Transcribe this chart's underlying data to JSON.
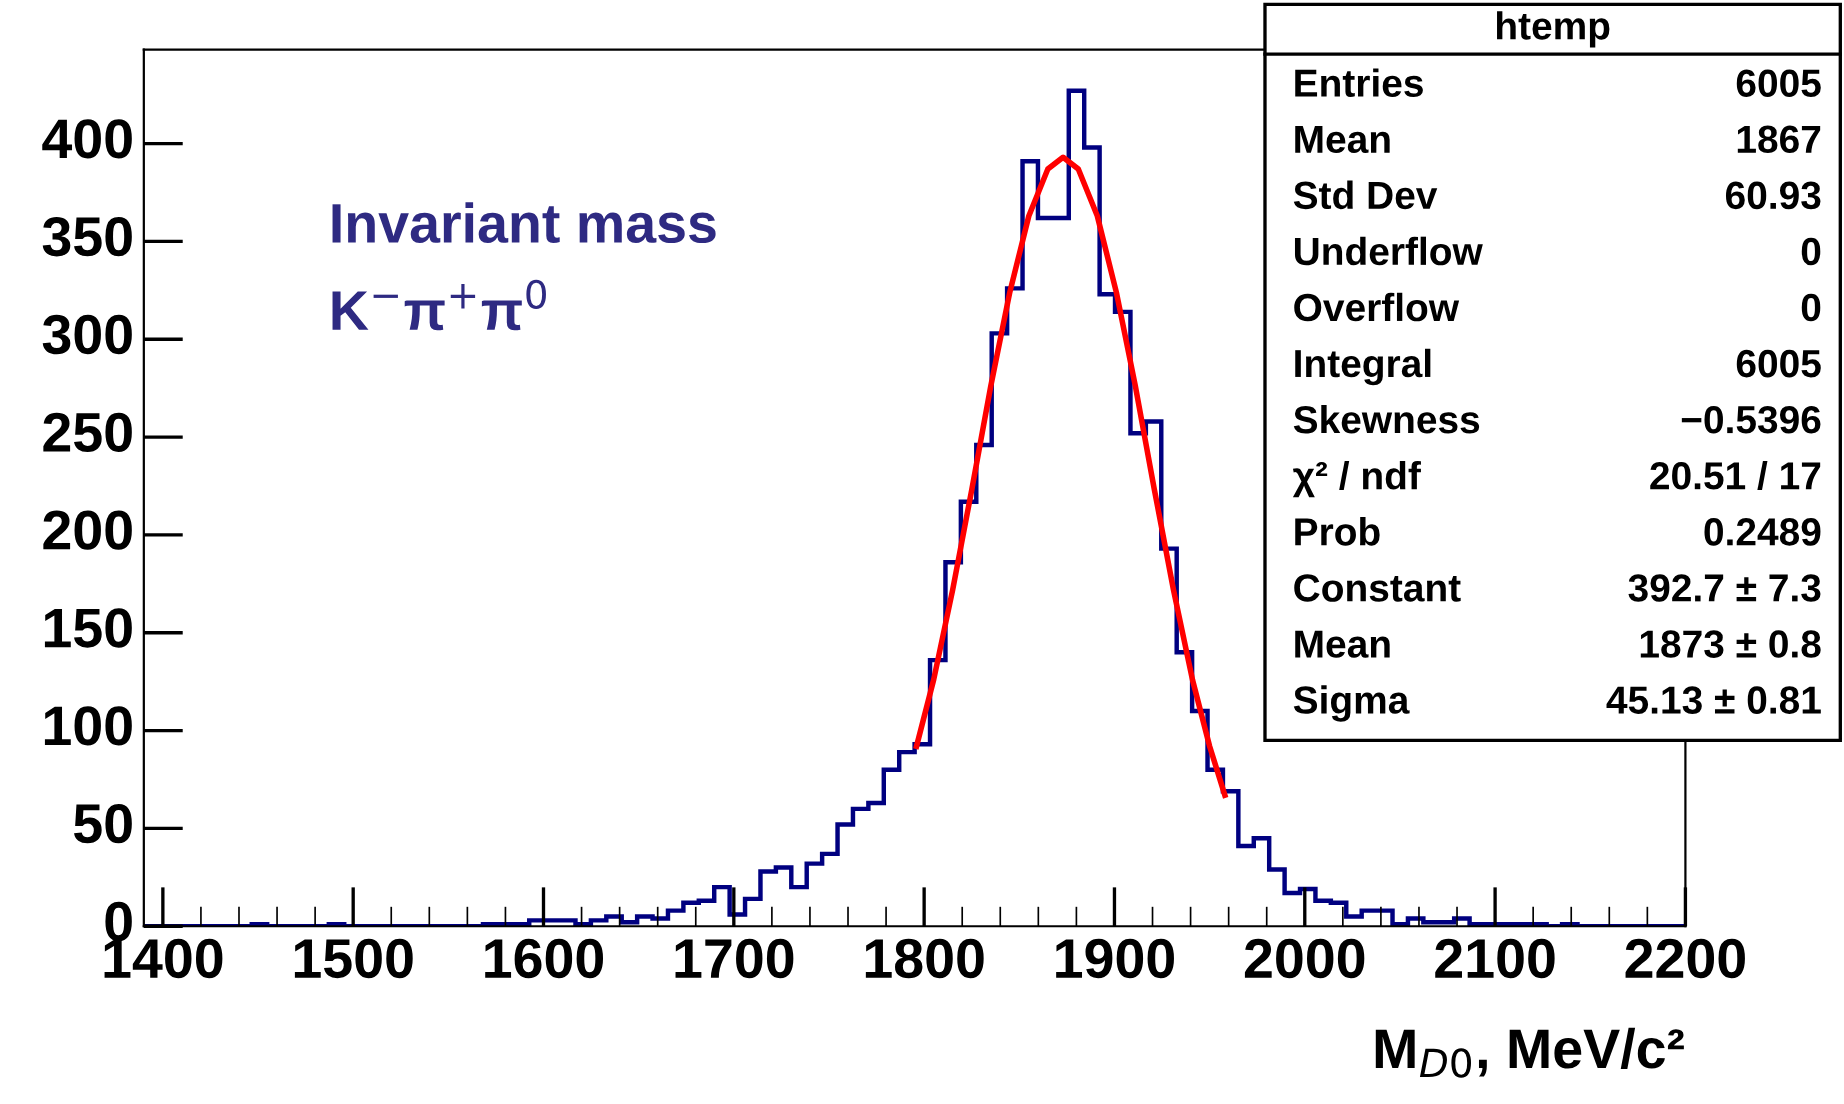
{
  "chart_data": {
    "type": "histogram",
    "title": "htemp",
    "xlabel": "M$_{D0}$, MeV/c²",
    "xlim": [
      1390,
      2200
    ],
    "xticks": [
      1400,
      1500,
      1600,
      1700,
      1800,
      1900,
      2000,
      2100,
      2200
    ],
    "ylim": [
      0,
      448
    ],
    "yticks": [
      0,
      50,
      100,
      150,
      200,
      250,
      300,
      350,
      400
    ],
    "series": [
      {
        "color": "#000080",
        "bins": [
          1390,
          1398.1,
          1406.2,
          1414.3,
          1422.4,
          1430.5,
          1438.6,
          1446.7,
          1454.8,
          1462.9,
          1471,
          1479.1,
          1487.2,
          1495.3,
          1503.4,
          1511.5,
          1519.6,
          1527.7,
          1535.8,
          1543.9,
          1552,
          1560.1,
          1568.2,
          1576.3,
          1584.4,
          1592.5,
          1600.6,
          1608.7,
          1616.8,
          1624.9,
          1633,
          1641.1,
          1649.2,
          1657.3,
          1665.4,
          1673.5,
          1681.6,
          1689.7,
          1697.8,
          1705.9,
          1714,
          1722.1,
          1730.2,
          1738.3,
          1746.4,
          1754.5,
          1762.6,
          1770.7,
          1778.8,
          1786.9,
          1795,
          1803.1,
          1811.2,
          1819.3,
          1827.4,
          1835.5,
          1843.6,
          1851.7,
          1859.8,
          1867.9,
          1876,
          1884.1,
          1892.2,
          1900.3,
          1908.4,
          1916.5,
          1924.6,
          1932.7,
          1940.8,
          1948.9,
          1957,
          1965.1,
          1973.2,
          1981.3,
          1989.4,
          1997.5,
          2005.6,
          2013.7,
          2021.8,
          2029.9,
          2038,
          2046.1,
          2054.2,
          2062.3,
          2070.4,
          2078.5,
          2086.6,
          2094.7,
          2102.8,
          2110.9,
          2119,
          2127.1,
          2135.2,
          2143.3,
          2151.4,
          2159.5,
          2167.6,
          2175.7,
          2183.8,
          2191.9,
          2200
        ],
        "values": [
          0,
          0,
          0,
          0,
          0,
          0,
          0,
          1,
          0,
          0,
          0,
          0,
          1,
          0,
          0,
          0,
          0,
          0,
          0,
          0,
          0,
          0,
          1,
          1,
          1,
          3,
          3,
          3,
          1,
          3,
          5,
          2,
          5,
          4,
          8,
          12,
          13,
          20,
          6,
          14,
          28,
          30,
          20,
          32,
          37,
          52,
          60,
          63,
          80,
          89,
          93,
          136,
          186,
          217,
          246,
          303,
          326,
          391,
          362,
          362,
          427,
          398,
          323,
          314,
          252,
          258,
          193,
          140,
          110,
          80,
          69,
          41,
          45,
          29,
          17,
          19,
          13,
          12,
          5,
          8,
          8,
          1,
          4,
          2,
          2,
          4,
          1,
          1,
          1,
          1,
          1,
          0,
          1,
          0,
          0,
          0,
          0,
          0,
          0,
          0
        ]
      },
      {
        "type": "line",
        "color": "#ff0000",
        "x": [
          1796,
          1805,
          1815,
          1825,
          1835,
          1845,
          1855,
          1865,
          1873,
          1881,
          1891,
          1901,
          1911,
          1921,
          1931,
          1941,
          1950,
          1958
        ],
        "values": [
          92,
          126,
          172,
          223,
          276,
          324,
          363,
          387,
          393,
          387,
          363,
          324,
          276,
          223,
          172,
          126,
          92,
          67
        ]
      }
    ],
    "annotations": [
      "Invariant mass",
      "K$^{−}$π$^{+}$π$^{0}$",
      "Entries",
      "6005",
      "Mean",
      "1867",
      "Std Dev",
      "60.93",
      "Underflow",
      "0",
      "Overflow",
      "0",
      "Integral",
      "6005",
      "Skewness",
      "−0.5396",
      "χ² / ndf",
      "20.51 / 17",
      "Prob",
      "0.2489",
      "Constant",
      "392.7 ± 7.3",
      "Mean",
      "1873 ± 0.8",
      "Sigma",
      "45.13 ± 0.81"
    ],
    "grid": false
  }
}
